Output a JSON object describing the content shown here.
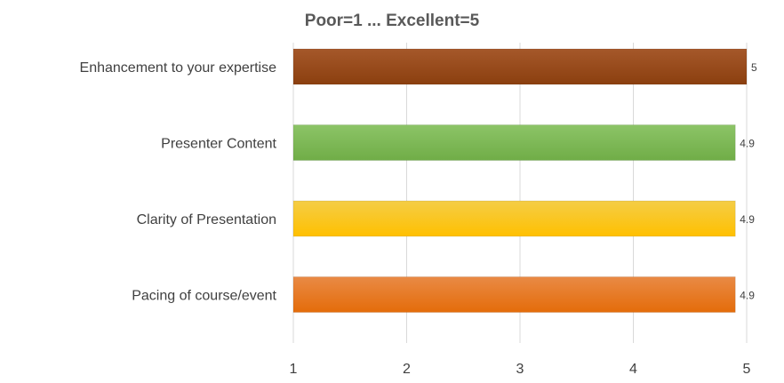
{
  "chart_data": {
    "type": "bar",
    "orientation": "horizontal",
    "title": "Poor=1 ... Excellent=5",
    "xlabel": "",
    "ylabel": "",
    "xlim": [
      1,
      5
    ],
    "ticks": [
      "1",
      "2",
      "3",
      "4",
      "5"
    ],
    "grid": true,
    "legend": "none",
    "categories": [
      "Enhancement to your expertise",
      "Presenter Content",
      "Clarity of Presentation",
      "Pacing of course/event"
    ],
    "values": [
      5,
      4.9,
      4.9,
      4.9
    ],
    "data_labels": [
      "5",
      "4.9",
      "4.9",
      "4.9"
    ],
    "colors": [
      "#8b3f0f",
      "#70ad47",
      "#ffc000",
      "#e46c0a"
    ],
    "colors_light": [
      "#a5582a",
      "#8cc467",
      "#f4cd46",
      "#e98a45"
    ]
  }
}
